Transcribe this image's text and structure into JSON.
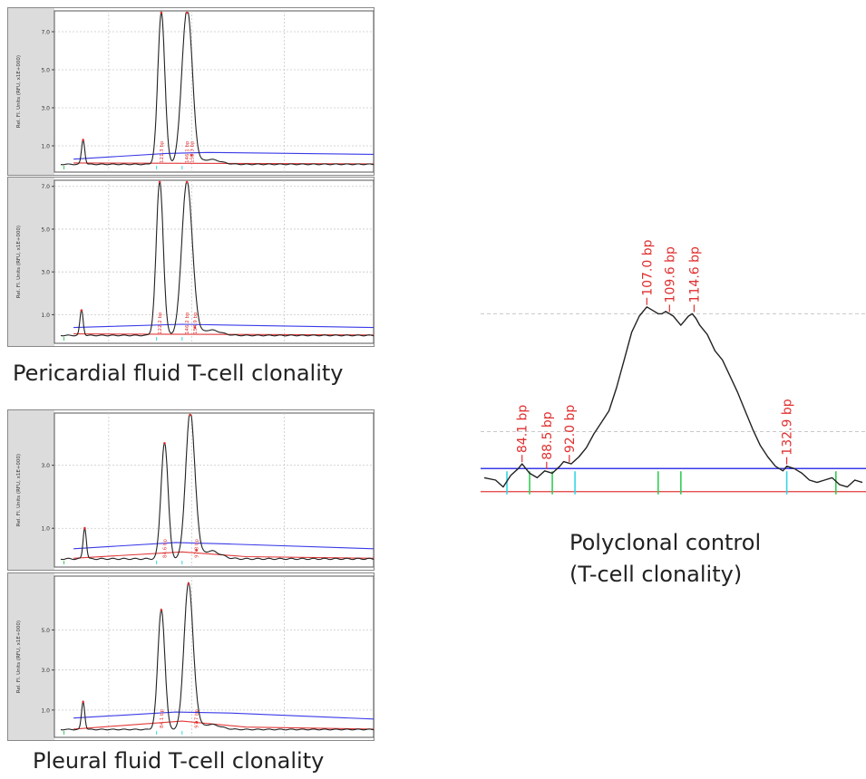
{
  "captions": {
    "pericardial": "Pericardial fluid T-cell clonality",
    "pleural": "Pleural fluid T-cell clonality",
    "polyclonal_line1": "Polyclonal control",
    "polyclonal_line2": "(T-cell clonality)"
  },
  "colors": {
    "trace": "#222222",
    "blue_line": "#3a3ae8",
    "red_line": "#e23a3a",
    "peak_label": "#e03030",
    "cyan_tick": "#33d6e6",
    "green_tick": "#33cc55",
    "panel_gutter": "#dcdcdc"
  },
  "chart_data": [
    {
      "id": "pericardial-1",
      "type": "line",
      "ylabel": "Rel. Fl. Units (RFU, x1E+000)",
      "ylim": [
        0,
        8.0
      ],
      "ytick_labels": [
        "1.0",
        "3.0",
        "5.0",
        "7.0"
      ],
      "yticks": [
        1.0,
        3.0,
        5.0,
        7.0
      ],
      "grid": true,
      "peaks": [
        {
          "x": 0.09,
          "height": 1.3,
          "width": 0.005
        },
        {
          "x": 0.335,
          "height": 8.0,
          "width": 0.011,
          "label": "121.3 bp"
        },
        {
          "x": 0.415,
          "height": 8.0,
          "width": 0.016,
          "label": "146.1 bp"
        },
        {
          "x": 0.43,
          "height": 0.5,
          "width": 0.01,
          "label": "153.3 bp"
        }
      ],
      "baseline_blue": [
        [
          0.06,
          0.3
        ],
        [
          0.35,
          0.6
        ],
        [
          0.48,
          0.65
        ],
        [
          1.0,
          0.55
        ]
      ],
      "baseline_red": [
        [
          0.06,
          0.1
        ],
        [
          1.0,
          0.05
        ]
      ]
    },
    {
      "id": "pericardial-2",
      "type": "line",
      "ylabel": "Rel. Fl. Units (RFU, x1E+000)",
      "ylim": [
        0,
        7.2
      ],
      "ytick_labels": [
        "1.0",
        "3.0",
        "5.0",
        "7.0"
      ],
      "yticks": [
        1.0,
        3.0,
        5.0,
        7.0
      ],
      "grid": true,
      "peaks": [
        {
          "x": 0.085,
          "height": 1.2,
          "width": 0.005
        },
        {
          "x": 0.33,
          "height": 7.2,
          "width": 0.011,
          "label": "122.2 bp"
        },
        {
          "x": 0.415,
          "height": 7.2,
          "width": 0.016,
          "label": "146.2 bp"
        },
        {
          "x": 0.44,
          "height": 0.4,
          "width": 0.01,
          "label": "154.9 bp"
        }
      ],
      "baseline_blue": [
        [
          0.06,
          0.4
        ],
        [
          0.4,
          0.55
        ],
        [
          1.0,
          0.4
        ]
      ],
      "baseline_red": [
        [
          0.06,
          0.1
        ],
        [
          1.0,
          0.05
        ]
      ]
    },
    {
      "id": "pleural-1",
      "type": "line",
      "ylabel": "Rel. Fl. Units (RFU, x1E+000)",
      "ylim": [
        0,
        4.6
      ],
      "ytick_labels": [
        "1.0",
        "3.0"
      ],
      "yticks": [
        1.0,
        3.0
      ],
      "grid": true,
      "peaks": [
        {
          "x": 0.095,
          "height": 1.0,
          "width": 0.005
        },
        {
          "x": 0.345,
          "height": 3.7,
          "width": 0.011,
          "label": "84.6 bp"
        },
        {
          "x": 0.425,
          "height": 4.6,
          "width": 0.014
        },
        {
          "x": 0.445,
          "height": 0.3,
          "width": 0.01,
          "label": "97.8 bp"
        }
      ],
      "baseline_blue": [
        [
          0.06,
          0.35
        ],
        [
          0.38,
          0.55
        ],
        [
          0.55,
          0.5
        ],
        [
          1.0,
          0.35
        ]
      ],
      "baseline_red": [
        [
          0.06,
          0.05
        ],
        [
          0.4,
          0.25
        ],
        [
          0.6,
          0.1
        ],
        [
          1.0,
          0.05
        ]
      ]
    },
    {
      "id": "pleural-2",
      "type": "line",
      "ylabel": "Rel. Fl. Units (RFU, x1E+000)",
      "ylim": [
        0,
        7.6
      ],
      "ytick_labels": [
        "1.0",
        "3.0",
        "5.0"
      ],
      "yticks": [
        1.0,
        3.0,
        5.0
      ],
      "grid": true,
      "peaks": [
        {
          "x": 0.09,
          "height": 1.4,
          "width": 0.005
        },
        {
          "x": 0.335,
          "height": 6.0,
          "width": 0.011,
          "label": "84.1 bp"
        },
        {
          "x": 0.42,
          "height": 7.3,
          "width": 0.014
        },
        {
          "x": 0.445,
          "height": 0.4,
          "width": 0.01,
          "label": "97.7 bp"
        }
      ],
      "baseline_blue": [
        [
          0.06,
          0.6
        ],
        [
          0.38,
          0.9
        ],
        [
          0.55,
          0.85
        ],
        [
          1.0,
          0.55
        ]
      ],
      "baseline_red": [
        [
          0.06,
          0.05
        ],
        [
          0.4,
          0.45
        ],
        [
          0.6,
          0.15
        ],
        [
          1.0,
          0.05
        ]
      ]
    },
    {
      "id": "polyclonal-control",
      "type": "line",
      "ylim": [
        0,
        1.0
      ],
      "grid": true,
      "gridlines_y": [
        0.72,
        0.21
      ],
      "trace": [
        [
          0.0,
          0.01
        ],
        [
          0.03,
          0.0
        ],
        [
          0.05,
          -0.03
        ],
        [
          0.07,
          0.02
        ],
        [
          0.09,
          0.05
        ],
        [
          0.1,
          0.07
        ],
        [
          0.12,
          0.03
        ],
        [
          0.14,
          0.01
        ],
        [
          0.16,
          0.04
        ],
        [
          0.18,
          0.03
        ],
        [
          0.2,
          0.06
        ],
        [
          0.21,
          0.08
        ],
        [
          0.23,
          0.07
        ],
        [
          0.25,
          0.1
        ],
        [
          0.27,
          0.14
        ],
        [
          0.29,
          0.2
        ],
        [
          0.31,
          0.25
        ],
        [
          0.33,
          0.3
        ],
        [
          0.35,
          0.4
        ],
        [
          0.37,
          0.52
        ],
        [
          0.39,
          0.64
        ],
        [
          0.41,
          0.71
        ],
        [
          0.43,
          0.75
        ],
        [
          0.44,
          0.74
        ],
        [
          0.45,
          0.73
        ],
        [
          0.46,
          0.72
        ],
        [
          0.47,
          0.72
        ],
        [
          0.48,
          0.73
        ],
        [
          0.49,
          0.72
        ],
        [
          0.5,
          0.71
        ],
        [
          0.51,
          0.69
        ],
        [
          0.52,
          0.67
        ],
        [
          0.53,
          0.69
        ],
        [
          0.54,
          0.71
        ],
        [
          0.55,
          0.72
        ],
        [
          0.56,
          0.7
        ],
        [
          0.57,
          0.67
        ],
        [
          0.59,
          0.63
        ],
        [
          0.61,
          0.56
        ],
        [
          0.63,
          0.52
        ],
        [
          0.65,
          0.45
        ],
        [
          0.67,
          0.38
        ],
        [
          0.69,
          0.3
        ],
        [
          0.71,
          0.22
        ],
        [
          0.73,
          0.15
        ],
        [
          0.75,
          0.1
        ],
        [
          0.77,
          0.06
        ],
        [
          0.79,
          0.04
        ],
        [
          0.8,
          0.06
        ],
        [
          0.82,
          0.05
        ],
        [
          0.84,
          0.03
        ],
        [
          0.86,
          0.0
        ],
        [
          0.88,
          -0.01
        ],
        [
          0.9,
          0.0
        ],
        [
          0.92,
          0.01
        ],
        [
          0.94,
          -0.02
        ],
        [
          0.96,
          -0.03
        ],
        [
          0.98,
          0.0
        ],
        [
          1.0,
          -0.01
        ]
      ],
      "peak_labels": [
        {
          "x": 0.1,
          "value": 0.07,
          "label": "84.1 bp"
        },
        {
          "x": 0.165,
          "value": 0.04,
          "label": "88.5 bp"
        },
        {
          "x": 0.225,
          "value": 0.07,
          "label": "92.0 bp"
        },
        {
          "x": 0.43,
          "value": 0.75,
          "label": "107.0 bp"
        },
        {
          "x": 0.49,
          "value": 0.72,
          "label": "109.6 bp"
        },
        {
          "x": 0.555,
          "value": 0.72,
          "label": "114.6 bp"
        },
        {
          "x": 0.8,
          "value": 0.06,
          "label": "132.9 bp"
        }
      ],
      "baseline_blue": 0.05,
      "baseline_red": -0.05,
      "tick_marks": [
        {
          "x": 0.06,
          "color": "cyan"
        },
        {
          "x": 0.12,
          "color": "green"
        },
        {
          "x": 0.18,
          "color": "green"
        },
        {
          "x": 0.24,
          "color": "cyan"
        },
        {
          "x": 0.46,
          "color": "green"
        },
        {
          "x": 0.52,
          "color": "green"
        },
        {
          "x": 0.8,
          "color": "cyan"
        },
        {
          "x": 0.93,
          "color": "green"
        }
      ]
    }
  ]
}
